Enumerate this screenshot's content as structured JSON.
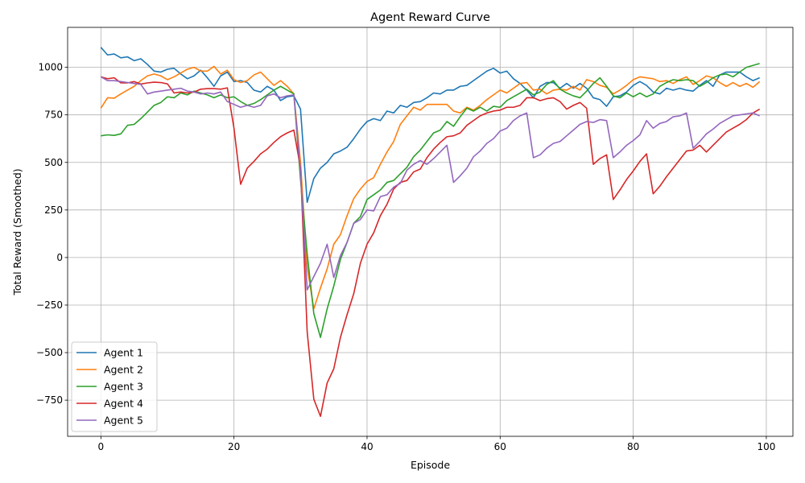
{
  "chart_data": {
    "type": "line",
    "title": "Agent Reward Curve",
    "xlabel": "Episode",
    "ylabel": "Total Reward (Smoothed)",
    "xlim": [
      -5,
      104
    ],
    "ylim": [
      -940,
      1210
    ],
    "xticks": [
      0,
      20,
      40,
      60,
      80,
      100
    ],
    "yticks": [
      -750,
      -500,
      -250,
      0,
      250,
      500,
      750,
      1000
    ],
    "grid": true,
    "legend_position": "lower-left",
    "series": [
      {
        "name": "Agent 1",
        "color": "#1f77b4",
        "x": [
          0,
          1,
          2,
          3,
          4,
          5,
          6,
          7,
          8,
          9,
          10,
          11,
          12,
          13,
          14,
          15,
          16,
          17,
          18,
          19,
          20,
          21,
          22,
          23,
          24,
          25,
          26,
          27,
          28,
          29,
          30,
          31,
          32,
          33,
          34,
          35,
          36,
          37,
          38,
          39,
          40,
          41,
          42,
          43,
          44,
          45,
          46,
          47,
          48,
          49,
          50,
          51,
          52,
          53,
          54,
          55,
          56,
          57,
          58,
          59,
          60,
          61,
          62,
          63,
          64,
          65,
          66,
          67,
          68,
          69,
          70,
          71,
          72,
          73,
          74,
          75,
          76,
          77,
          78,
          79,
          80,
          81,
          82,
          83,
          84,
          85,
          86,
          87,
          88,
          89,
          90,
          91,
          92,
          93,
          94,
          95,
          96,
          97,
          98,
          99
        ],
        "values": [
          1105,
          1065,
          1070,
          1050,
          1055,
          1035,
          1045,
          1015,
          980,
          975,
          990,
          995,
          965,
          940,
          955,
          985,
          945,
          900,
          955,
          975,
          925,
          930,
          920,
          880,
          870,
          900,
          880,
          825,
          845,
          850,
          780,
          290,
          415,
          470,
          500,
          545,
          560,
          580,
          625,
          675,
          715,
          730,
          720,
          770,
          760,
          800,
          790,
          815,
          820,
          840,
          865,
          860,
          880,
          880,
          900,
          905,
          930,
          955,
          980,
          995,
          970,
          980,
          940,
          915,
          880,
          840,
          900,
          920,
          920,
          890,
          915,
          890,
          915,
          890,
          840,
          830,
          795,
          845,
          850,
          870,
          905,
          925,
          905,
          870,
          860,
          890,
          880,
          890,
          880,
          875,
          905,
          930,
          900,
          960,
          975,
          975,
          975,
          950,
          930,
          945
        ]
      },
      {
        "name": "Agent 2",
        "color": "#ff7f0e",
        "x": [
          0,
          1,
          2,
          3,
          4,
          5,
          6,
          7,
          8,
          9,
          10,
          11,
          12,
          13,
          14,
          15,
          16,
          17,
          18,
          19,
          20,
          21,
          22,
          23,
          24,
          25,
          26,
          27,
          28,
          29,
          30,
          31,
          32,
          33,
          34,
          35,
          36,
          37,
          38,
          39,
          40,
          41,
          42,
          43,
          44,
          45,
          46,
          47,
          48,
          49,
          50,
          51,
          52,
          53,
          54,
          55,
          56,
          57,
          58,
          59,
          60,
          61,
          62,
          63,
          64,
          65,
          66,
          67,
          68,
          69,
          70,
          71,
          72,
          73,
          74,
          75,
          76,
          77,
          78,
          79,
          80,
          81,
          82,
          83,
          84,
          85,
          86,
          87,
          88,
          89,
          90,
          91,
          92,
          93,
          94,
          95,
          96,
          97,
          98,
          99
        ],
        "values": [
          785,
          840,
          838,
          860,
          880,
          900,
          930,
          955,
          965,
          955,
          935,
          950,
          970,
          990,
          1000,
          980,
          980,
          1005,
          965,
          985,
          935,
          920,
          930,
          960,
          975,
          940,
          905,
          930,
          900,
          860,
          500,
          -50,
          -270,
          -160,
          -60,
          70,
          120,
          220,
          310,
          360,
          400,
          420,
          490,
          555,
          610,
          700,
          745,
          790,
          775,
          805,
          805,
          805,
          805,
          770,
          760,
          790,
          775,
          800,
          830,
          855,
          880,
          865,
          890,
          915,
          920,
          880,
          885,
          860,
          880,
          885,
          880,
          900,
          880,
          935,
          925,
          905,
          895,
          860,
          880,
          905,
          935,
          950,
          945,
          940,
          925,
          930,
          915,
          935,
          950,
          910,
          930,
          955,
          945,
          920,
          900,
          920,
          900,
          915,
          895,
          925
        ]
      },
      {
        "name": "Agent 3",
        "color": "#2ca02c",
        "x": [
          0,
          1,
          2,
          3,
          4,
          5,
          6,
          7,
          8,
          9,
          10,
          11,
          12,
          13,
          14,
          15,
          16,
          17,
          18,
          19,
          20,
          21,
          22,
          23,
          24,
          25,
          26,
          27,
          28,
          29,
          30,
          31,
          32,
          33,
          34,
          35,
          36,
          37,
          38,
          39,
          40,
          41,
          42,
          43,
          44,
          45,
          46,
          47,
          48,
          49,
          50,
          51,
          52,
          53,
          54,
          55,
          56,
          57,
          58,
          59,
          60,
          61,
          62,
          63,
          64,
          65,
          66,
          67,
          68,
          69,
          70,
          71,
          72,
          73,
          74,
          75,
          76,
          77,
          78,
          79,
          80,
          81,
          82,
          83,
          84,
          85,
          86,
          87,
          88,
          89,
          90,
          91,
          92,
          93,
          94,
          95,
          96,
          97,
          98,
          99
        ],
        "values": [
          640,
          645,
          642,
          650,
          695,
          700,
          730,
          765,
          800,
          815,
          845,
          840,
          865,
          855,
          875,
          865,
          855,
          840,
          855,
          840,
          845,
          820,
          800,
          810,
          830,
          855,
          880,
          900,
          880,
          860,
          410,
          20,
          -295,
          -420,
          -270,
          -150,
          -10,
          80,
          180,
          215,
          305,
          330,
          355,
          395,
          405,
          440,
          475,
          530,
          565,
          610,
          655,
          670,
          715,
          690,
          740,
          785,
          770,
          790,
          770,
          795,
          790,
          825,
          845,
          865,
          885,
          855,
          870,
          910,
          930,
          885,
          865,
          850,
          840,
          875,
          915,
          945,
          900,
          850,
          840,
          865,
          845,
          865,
          845,
          860,
          900,
          920,
          935,
          930,
          935,
          930,
          900,
          920,
          945,
          960,
          965,
          950,
          975,
          1000,
          1010,
          1020
        ]
      },
      {
        "name": "Agent 4",
        "color": "#d62728",
        "x": [
          0,
          1,
          2,
          3,
          4,
          5,
          6,
          7,
          8,
          9,
          10,
          11,
          12,
          13,
          14,
          15,
          16,
          17,
          18,
          19,
          20,
          21,
          22,
          23,
          24,
          25,
          26,
          27,
          28,
          29,
          30,
          31,
          32,
          33,
          34,
          35,
          36,
          37,
          38,
          39,
          40,
          41,
          42,
          43,
          44,
          45,
          46,
          47,
          48,
          49,
          50,
          51,
          52,
          53,
          54,
          55,
          56,
          57,
          58,
          59,
          60,
          61,
          62,
          63,
          64,
          65,
          66,
          67,
          68,
          69,
          70,
          71,
          72,
          73,
          74,
          75,
          76,
          77,
          78,
          79,
          80,
          81,
          82,
          83,
          84,
          85,
          86,
          87,
          88,
          89,
          90,
          91,
          92,
          93,
          94,
          95,
          96,
          97,
          98,
          99
        ],
        "values": [
          950,
          940,
          945,
          918,
          918,
          925,
          912,
          918,
          922,
          920,
          913,
          865,
          870,
          865,
          870,
          885,
          888,
          888,
          885,
          892,
          680,
          385,
          470,
          505,
          545,
          570,
          605,
          635,
          655,
          670,
          470,
          -390,
          -745,
          -835,
          -660,
          -585,
          -420,
          -300,
          -190,
          -30,
          70,
          130,
          220,
          280,
          360,
          395,
          405,
          450,
          465,
          525,
          570,
          605,
          635,
          640,
          655,
          695,
          720,
          745,
          760,
          770,
          775,
          790,
          790,
          800,
          840,
          840,
          825,
          835,
          840,
          820,
          780,
          800,
          815,
          785,
          490,
          520,
          540,
          305,
          355,
          410,
          455,
          505,
          545,
          335,
          375,
          425,
          470,
          515,
          560,
          565,
          590,
          555,
          590,
          625,
          660,
          680,
          700,
          725,
          760,
          780
        ]
      },
      {
        "name": "Agent 5",
        "color": "#9467bd",
        "x": [
          0,
          1,
          2,
          3,
          4,
          5,
          6,
          7,
          8,
          9,
          10,
          11,
          12,
          13,
          14,
          15,
          16,
          17,
          18,
          19,
          20,
          21,
          22,
          23,
          24,
          25,
          26,
          27,
          28,
          29,
          30,
          31,
          32,
          33,
          34,
          35,
          36,
          37,
          38,
          39,
          40,
          41,
          42,
          43,
          44,
          45,
          46,
          47,
          48,
          49,
          50,
          51,
          52,
          53,
          54,
          55,
          56,
          57,
          58,
          59,
          60,
          61,
          62,
          63,
          64,
          65,
          66,
          67,
          68,
          69,
          70,
          71,
          72,
          73,
          74,
          75,
          76,
          77,
          78,
          79,
          80,
          81,
          82,
          83,
          84,
          85,
          86,
          87,
          88,
          89,
          90,
          91,
          92,
          93,
          94,
          95,
          96,
          97,
          98,
          99
        ],
        "values": [
          950,
          930,
          930,
          925,
          920,
          915,
          910,
          860,
          870,
          875,
          880,
          885,
          890,
          875,
          870,
          860,
          865,
          860,
          870,
          820,
          805,
          790,
          800,
          790,
          800,
          850,
          860,
          840,
          850,
          855,
          450,
          -170,
          -100,
          -30,
          70,
          -105,
          10,
          80,
          180,
          200,
          250,
          245,
          320,
          330,
          370,
          390,
          460,
          490,
          510,
          490,
          520,
          555,
          590,
          395,
          430,
          470,
          530,
          560,
          600,
          625,
          665,
          680,
          720,
          745,
          760,
          525,
          540,
          575,
          600,
          610,
          640,
          670,
          700,
          715,
          710,
          725,
          720,
          525,
          555,
          590,
          615,
          645,
          720,
          680,
          705,
          715,
          740,
          745,
          760,
          575,
          610,
          650,
          675,
          705,
          725,
          745,
          750,
          755,
          760,
          745
        ]
      }
    ]
  }
}
